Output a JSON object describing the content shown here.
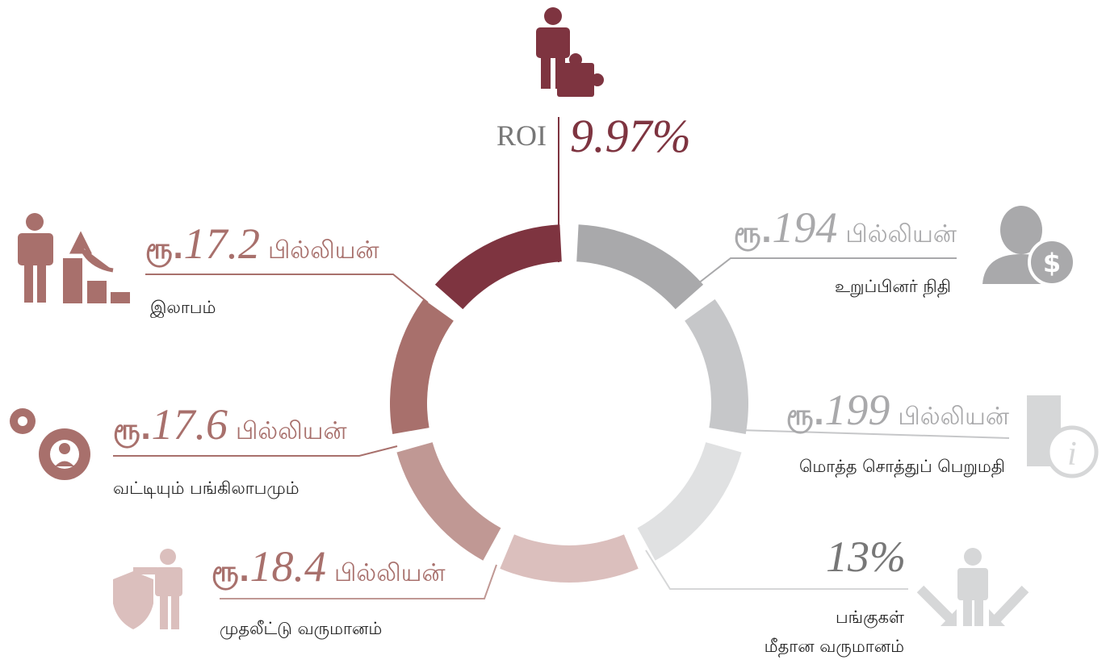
{
  "roi": {
    "label": "ROI",
    "amount": "9.97%"
  },
  "left": [
    {
      "currency": "ரூ.",
      "amount": "17.2",
      "unit": "பில்லியன்",
      "label": "இலாபம்"
    },
    {
      "currency": "ரூ.",
      "amount": "17.6",
      "unit": "பில்லியன்",
      "label": "வட்டியும் பங்கிலாபமும்"
    },
    {
      "currency": "ரூ.",
      "amount": "18.4",
      "unit": "பில்லியன்",
      "label": "முதலீட்டு வருமானம்"
    }
  ],
  "right": [
    {
      "currency": "ரூ.",
      "amount": "194",
      "unit": "பில்லியன்",
      "label": "உறுப்பினர் நிதி"
    },
    {
      "currency": "ரூ.",
      "amount": "199",
      "unit": "பில்லியன்",
      "label": "மொத்த சொத்துப் பெறுமதி"
    },
    {
      "amount": "13%",
      "label": "பங்குகள்",
      "label2": "மீதான வருமானம்"
    }
  ]
}
